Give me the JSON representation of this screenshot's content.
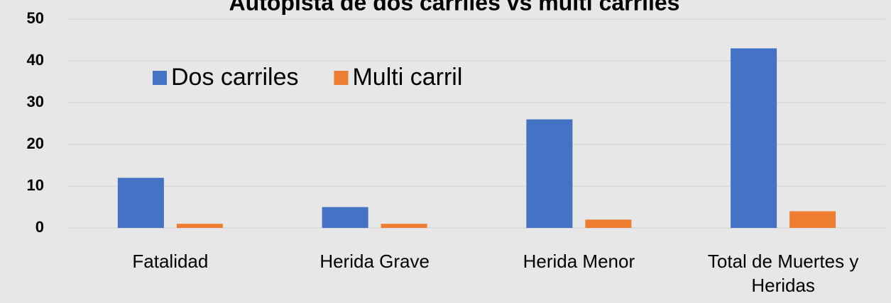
{
  "chart_data": {
    "type": "bar",
    "title": "Autopista de dos carriles vs multi carriles",
    "categories": [
      "Fatalidad",
      "Herida Grave",
      "Herida Menor",
      "Total de Muertes y Heridas"
    ],
    "series": [
      {
        "name": "Dos carriles",
        "color": "#4472c4",
        "values": [
          12,
          5,
          26,
          43
        ]
      },
      {
        "name": "Multi carril",
        "color": "#ed7d31",
        "values": [
          1,
          1,
          2,
          4
        ]
      }
    ],
    "ylim": [
      0,
      50
    ],
    "yticks": [
      0,
      10,
      20,
      30,
      40,
      50
    ],
    "grid": true
  }
}
